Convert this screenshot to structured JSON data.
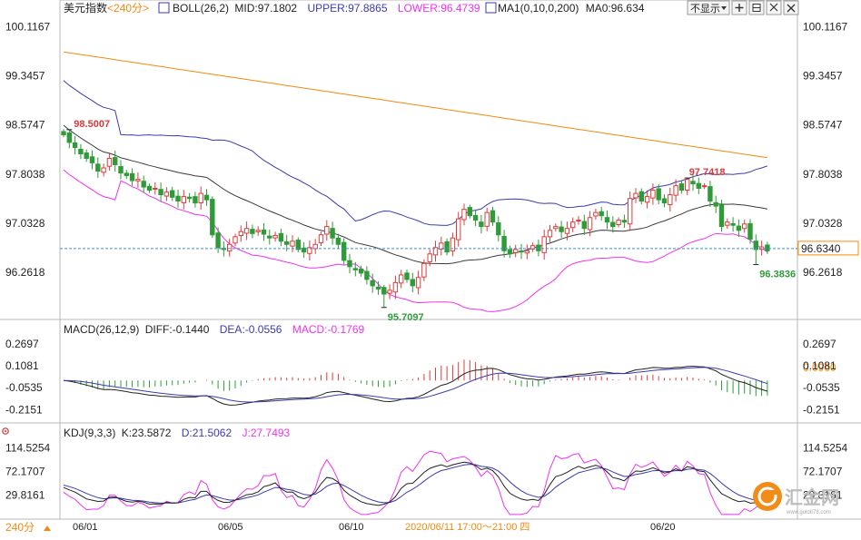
{
  "chart_data": [
    {
      "type": "candlestick",
      "panel": "main",
      "instrument": "美元指数",
      "period": "<240分>",
      "indicators_text": {
        "boll": "BOLL(26,2)",
        "mid": "MID:97.1802",
        "upper": "UPPER:97.8865",
        "lower": "LOWER:96.4739",
        "ma": "MA1(0,10,0,200)",
        "ma0": "MA0:96.634"
      },
      "y_ticks": [
        "100.1167",
        "99.3457",
        "98.5747",
        "97.8038",
        "97.0328",
        "96.2618"
      ],
      "ylim": [
        95.55,
        100.25
      ],
      "current_price": "96.6340",
      "current_value": 96.634,
      "annotations": [
        {
          "label": "98.5007",
          "value": 98.5007
        },
        {
          "label": "95.7097",
          "value": 95.7097
        },
        {
          "label": "97.7418",
          "value": 97.7418
        },
        {
          "label": "96.3836",
          "value": 96.3836
        }
      ],
      "close": [
        98.42,
        98.3,
        98.22,
        98.12,
        98.05,
        97.98,
        97.85,
        97.9,
        98.05,
        97.95,
        97.82,
        97.78,
        97.7,
        97.72,
        97.6,
        97.55,
        97.58,
        97.48,
        97.52,
        97.44,
        97.38,
        97.45,
        97.42,
        97.35,
        97.5,
        97.4,
        96.85,
        96.65,
        96.62,
        96.7,
        96.82,
        96.9,
        96.95,
        96.87,
        96.92,
        96.86,
        96.8,
        96.84,
        96.75,
        96.7,
        96.75,
        96.62,
        96.58,
        96.65,
        96.7,
        96.85,
        96.98,
        96.8,
        96.7,
        96.45,
        96.35,
        96.3,
        96.25,
        96.15,
        96.05,
        96,
        95.92,
        95.98,
        96.1,
        96.22,
        96.15,
        96.05,
        96.18,
        96.4,
        96.55,
        96.65,
        96.72,
        96.58,
        96.8,
        97.1,
        97.25,
        97.15,
        97.08,
        96.98,
        97.2,
        97.05,
        96.85,
        96.6,
        96.55,
        96.62,
        96.58,
        96.6,
        96.68,
        96.6,
        96.82,
        96.92,
        96.98,
        96.9,
        96.95,
        97.05,
        97.08,
        96.95,
        97.12,
        97.2,
        97.15,
        97.05,
        96.98,
        97.08,
        97.05,
        97.42,
        97.5,
        97.38,
        97.45,
        97.55,
        97.4,
        97.35,
        97.48,
        97.62,
        97.55,
        97.72,
        97.65,
        97.58,
        97.62,
        97.38,
        97.3,
        96.98,
        97.05,
        97,
        96.92,
        97.02,
        96.78,
        96.62,
        96.66,
        96.6
      ]
    },
    {
      "type": "macd",
      "panel": "macd",
      "label": "MACD(26,12,9)",
      "diff": "DIFF:-0.1440",
      "dea": "DEA:-0.0556",
      "macd": "MACD:-0.1769",
      "y_ticks": [
        "0.2697",
        "0.1081",
        "-0.0535",
        "-0.2151"
      ],
      "ylim": [
        -0.3,
        0.33
      ],
      "current_label": "0.0960",
      "current_value": 0.096
    },
    {
      "type": "kdj",
      "panel": "kdj",
      "label": "KDJ(9,3,3)",
      "k": "K:23.5872",
      "d": "D:21.5062",
      "j": "J:27.7493",
      "y_ticks": [
        "114.5254",
        "72.1707",
        "29.8161"
      ],
      "ylim": [
        -10,
        130
      ]
    }
  ],
  "x_ticks": [
    "06/01",
    "06/05",
    "06/10",
    "06/20"
  ],
  "crosshair_time": "2020/06/11 17:00～21:00 四",
  "period_button": "240分",
  "toolbar": {
    "hide_label": "不显示"
  },
  "watermark": {
    "text": "汇金网",
    "url": "www.gold678.com"
  },
  "colors": {
    "up": "#e03c3c",
    "down": "#2e9b38",
    "mid": "#3a3a3a",
    "upper": "#3b3bb0",
    "lower": "#ee33ee",
    "ma": "#f08a10",
    "diff": "#222222",
    "dea": "#3b3bb0",
    "j": "#ee33ee",
    "tag_current": "#ff8c00",
    "title": "#222222"
  }
}
